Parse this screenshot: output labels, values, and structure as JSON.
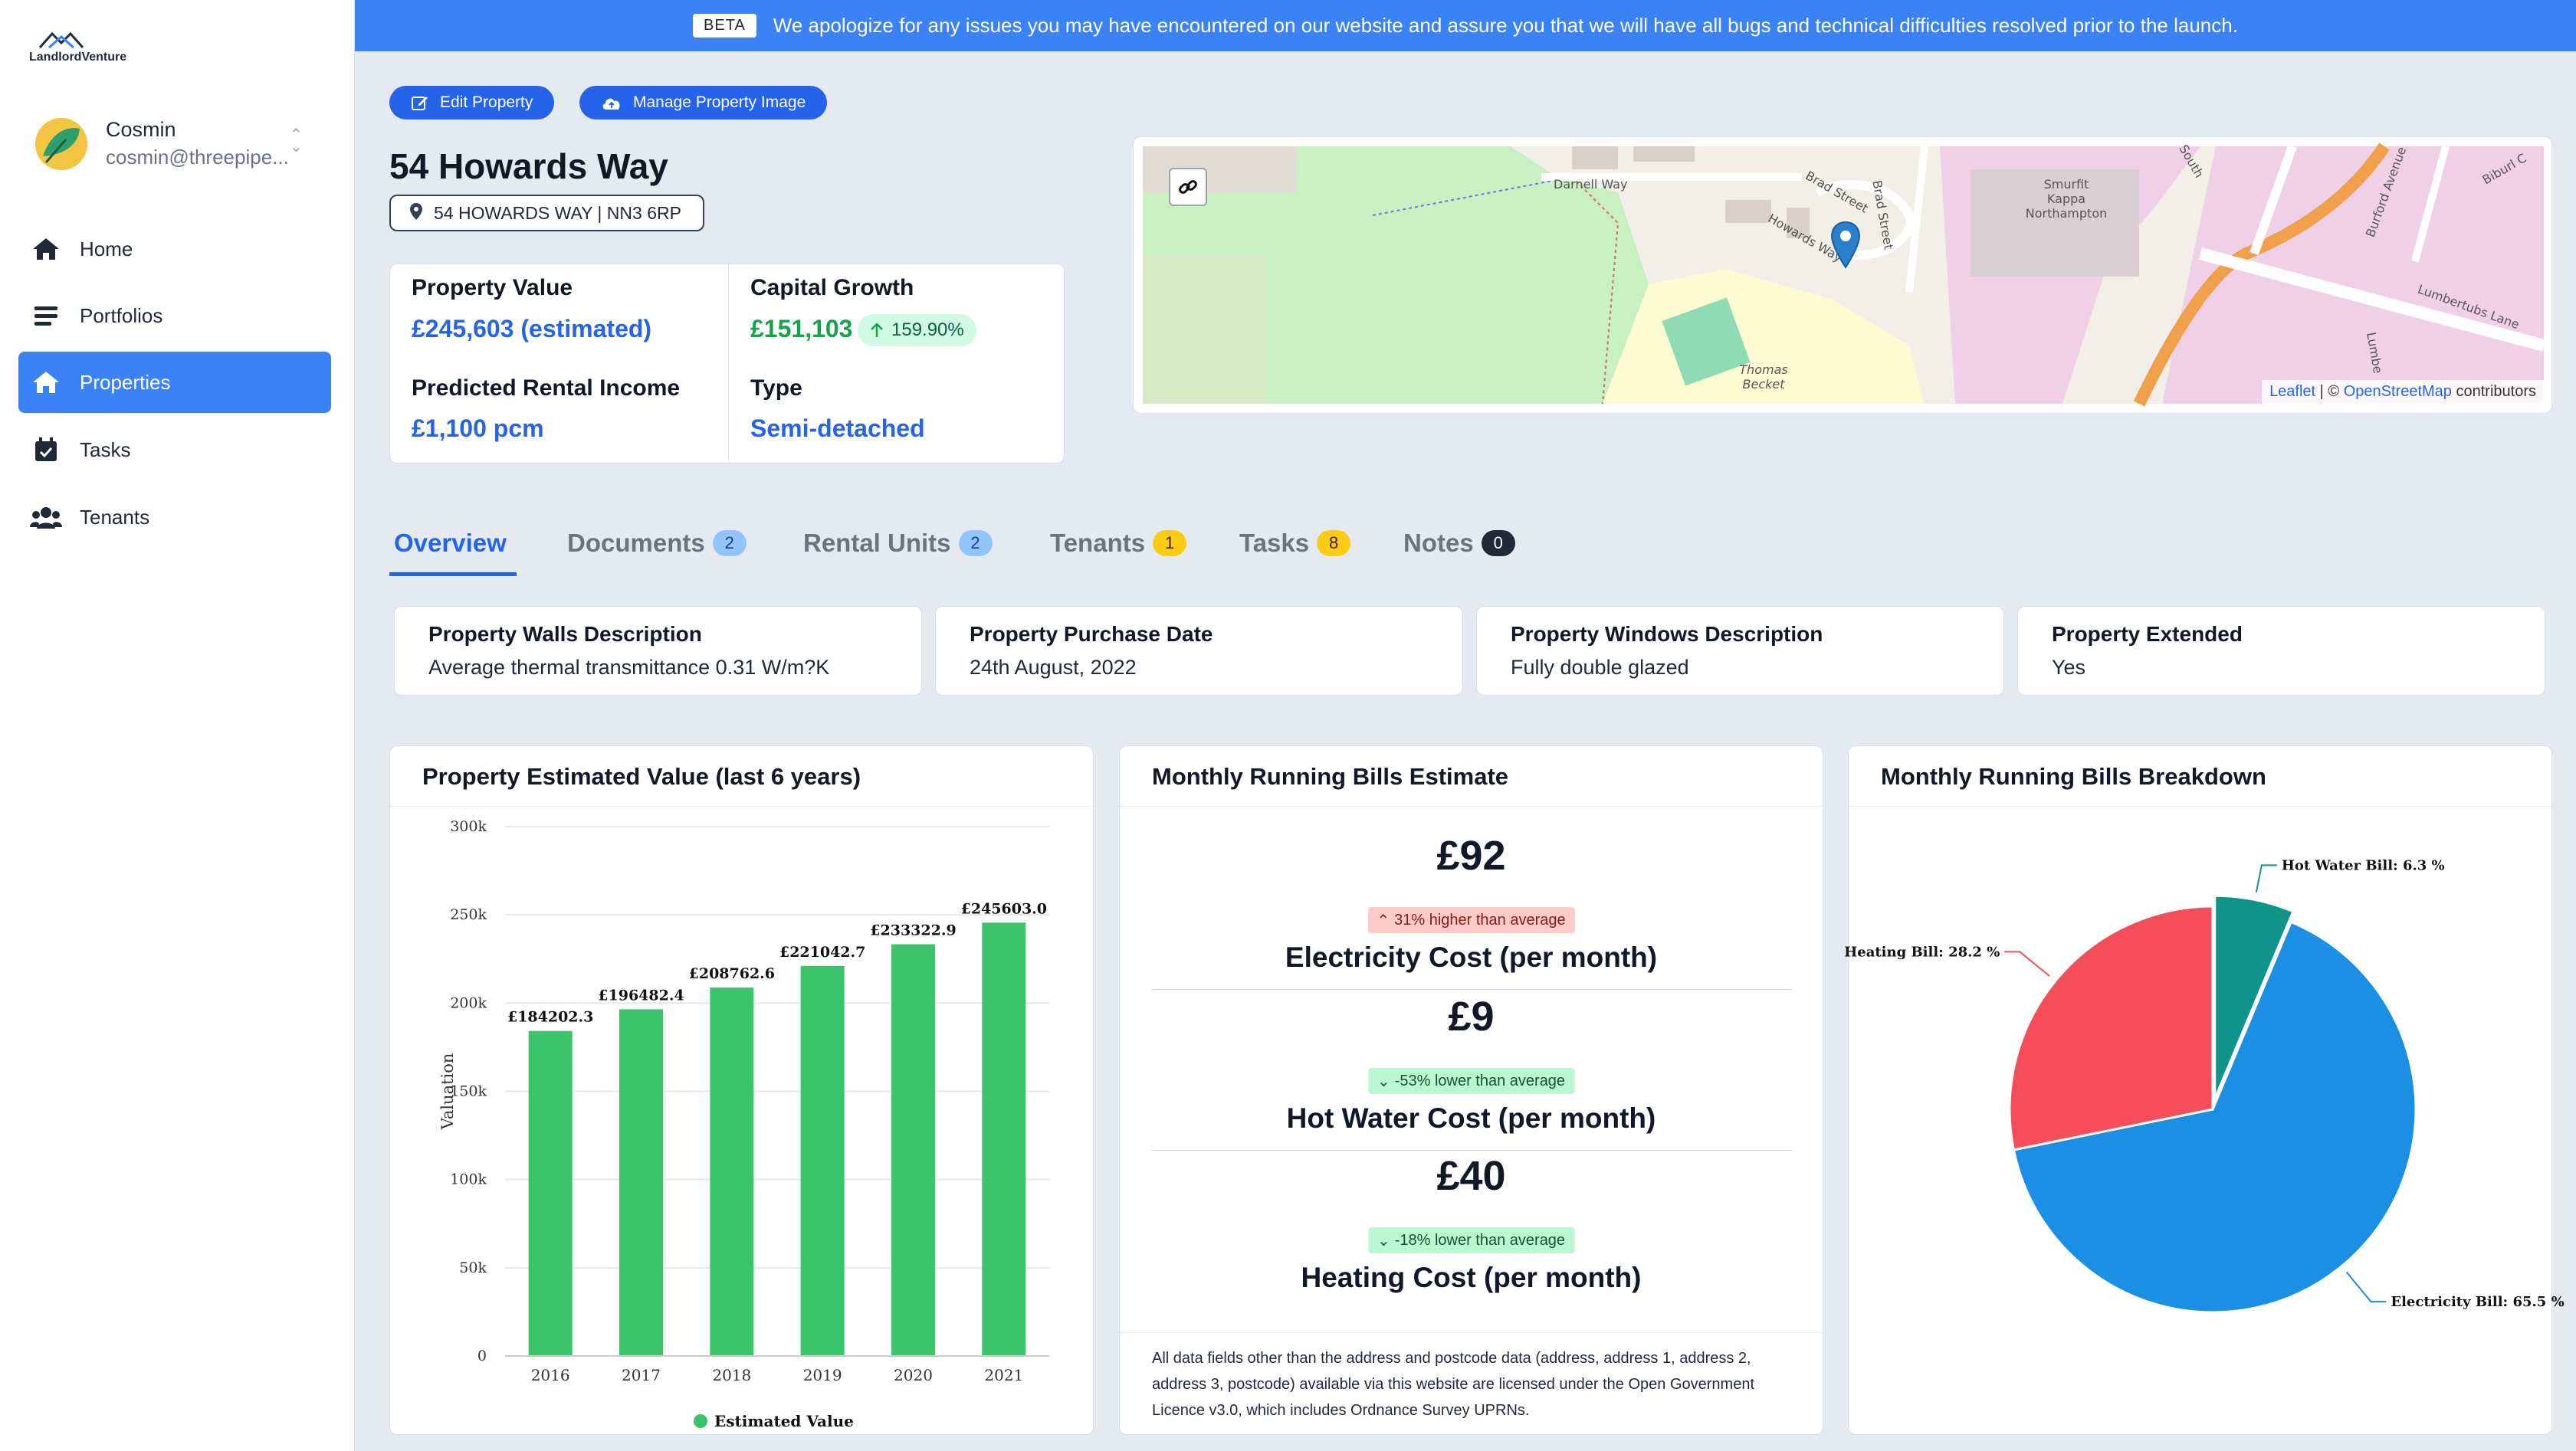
{
  "app": {
    "name": "LandlordVenture"
  },
  "user": {
    "name": "Cosmin",
    "email": "cosmin@threepipe..."
  },
  "nav": [
    {
      "label": "Home",
      "icon": "home-icon"
    },
    {
      "label": "Portfolios",
      "icon": "list-icon"
    },
    {
      "label": "Properties",
      "icon": "house-icon",
      "active": true
    },
    {
      "label": "Tasks",
      "icon": "calendar-check-icon"
    },
    {
      "label": "Tenants",
      "icon": "users-icon"
    }
  ],
  "banner": {
    "badge": "BETA",
    "text": "We apologize for any issues you may have encountered on our website and assure you that we will have all bugs and technical difficulties resolved prior to the launch."
  },
  "actions": {
    "edit": "Edit Property",
    "manage_image": "Manage Property Image"
  },
  "property": {
    "title": "54 Howards Way",
    "address": "54 HOWARDS WAY | NN3 6RP",
    "value_label": "Property Value",
    "value": "£245,603 (estimated)",
    "growth_label": "Capital Growth",
    "growth": "£151,103",
    "growth_pct": "159.90%",
    "rental_label": "Predicted Rental Income",
    "rental": "£1,100 pcm",
    "type_label": "Type",
    "type": "Semi-detached"
  },
  "map": {
    "labels": [
      "Darnell Way",
      "Brad Street",
      "Brad Street",
      "Howards Way",
      "Smurfit Kappa Northampton",
      "South",
      "Burford Avenue",
      "Lumbertubs Lane",
      "Thomas Becket",
      "Lumbe",
      "Biburl C"
    ],
    "attribution": {
      "leaflet": "Leaflet",
      "sep": " | © ",
      "osm": "OpenStreetMap",
      "suffix": " contributors"
    }
  },
  "tabs": [
    {
      "label": "Overview",
      "count": null
    },
    {
      "label": "Documents",
      "count": "2",
      "color": "#93c5fd",
      "text": "#1e3a8a"
    },
    {
      "label": "Rental Units",
      "count": "2",
      "color": "#93c5fd",
      "text": "#1e3a8a"
    },
    {
      "label": "Tenants",
      "count": "1",
      "color": "#facc15",
      "text": "#422006"
    },
    {
      "label": "Tasks",
      "count": "8",
      "color": "#facc15",
      "text": "#422006"
    },
    {
      "label": "Notes",
      "count": "0",
      "color": "#1f2937",
      "text": "#ffffff"
    }
  ],
  "details": [
    {
      "label": "Property Walls Description",
      "value": "Average thermal transmittance 0.31 W/m?K"
    },
    {
      "label": "Property Purchase Date",
      "value": "24th August, 2022"
    },
    {
      "label": "Property Windows Description",
      "value": "Fully double glazed"
    },
    {
      "label": "Property Extended",
      "value": "Yes"
    }
  ],
  "panels": {
    "value_chart_title": "Property Estimated Value (last 6 years)",
    "bills_title": "Monthly Running Bills Estimate",
    "breakdown_title": "Monthly Running Bills Breakdown"
  },
  "bills": [
    {
      "amount": "£92",
      "badge": "31% higher than average",
      "direction": "up",
      "label": "Electricity Cost (per month)"
    },
    {
      "amount": "£9",
      "badge": "-53% lower than average",
      "direction": "down",
      "label": "Hot Water Cost (per month)"
    },
    {
      "amount": "£40",
      "badge": "-18% lower than average",
      "direction": "down",
      "label": "Heating Cost (per month)"
    }
  ],
  "licence": "All data fields other than the address and postcode data (address, address 1, address 2, address 3, postcode) available via this website are licensed under the Open Government Licence v3.0, which includes Ordnance Survey UPRNs.",
  "chart_data": [
    {
      "type": "bar",
      "categories": [
        "2016",
        "2017",
        "2018",
        "2019",
        "2020",
        "2021"
      ],
      "values": [
        184202.3,
        196482.4,
        208762.6,
        221042.7,
        233322.9,
        245603.0
      ],
      "data_labels": [
        "£184202.3",
        "£196482.4",
        "£208762.6",
        "£221042.7",
        "£233322.9",
        "£245603.0"
      ],
      "ylabel": "Valuation",
      "ylim": [
        0,
        300000
      ],
      "yticks": [
        "0",
        "50k",
        "100k",
        "150k",
        "200k",
        "250k",
        "300k"
      ],
      "series": [
        {
          "name": "Estimated Value",
          "color": "#3cc46b"
        }
      ],
      "grid": true,
      "legend": "bottom"
    },
    {
      "type": "pie",
      "slices": [
        {
          "label": "Hot Water Bill: 6.3 %",
          "value": 6.3,
          "color": "#0e9488"
        },
        {
          "label": "Electricity Bill: 65.5 %",
          "value": 65.5,
          "color": "#1a8fe3"
        },
        {
          "label": "Heating Bill: 28.2 %",
          "value": 28.2,
          "color": "#f54d5a"
        }
      ]
    }
  ]
}
